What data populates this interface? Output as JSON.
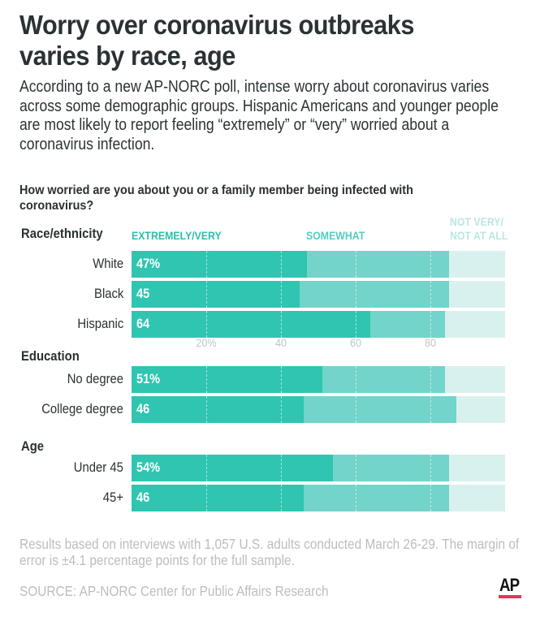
{
  "title": "Worry over coronavirus outbreaks varies by race, age",
  "subtitle": "According to a new AP-NORC poll, intense worry about coronavirus varies across some demographic groups. Hispanic Americans and younger people are most likely to report feeling “extremely” or “very” worried about a coronavirus infection.",
  "question": "How worried are you about you or a family member being infected with coronavirus?",
  "footnote": "Results based on interviews with 1,057 U.S. adults conducted March 26-29. The margin of error is ±4.1 percentage points for the full sample.",
  "source": "SOURCE: AP-NORC Center for Public Affairs Research",
  "logo": "AP",
  "colors": {
    "extremely_very": "#2fc5b1",
    "somewhat": "#72d4ca",
    "not_very": "#d9f1ee",
    "legend_extremely": "#2ebfab",
    "legend_somewhat": "#55cdbf",
    "legend_not_very": "#b9e7e1",
    "brand_red": "#e8335a"
  },
  "chart_data": {
    "type": "bar",
    "orientation": "horizontal",
    "stacked": true,
    "title": "How worried are you about you or a family member being infected with coronavirus?",
    "xlim": [
      0,
      100
    ],
    "x_ticks": [
      "20%",
      "40",
      "60",
      "80"
    ],
    "x_tick_values": [
      20,
      40,
      60,
      80
    ],
    "grid": true,
    "legend": [
      {
        "name": "EXTREMELY/VERY",
        "lines": [
          "EXTREMELY/VERY"
        ]
      },
      {
        "name": "SOMEWHAT",
        "lines": [
          "SOMEWHAT"
        ]
      },
      {
        "name": "NOT VERY/ NOT AT ALL",
        "lines": [
          "NOT VERY/",
          "NOT AT ALL"
        ]
      }
    ],
    "legend_position": "top",
    "groups": [
      {
        "label": "Race/ethnicity",
        "rows": [
          {
            "label": "White",
            "value_label": "47%",
            "values": [
              47,
              38,
              15
            ]
          },
          {
            "label": "Black",
            "value_label": "45",
            "values": [
              45,
              40,
              15
            ]
          },
          {
            "label": "Hispanic",
            "value_label": "64",
            "values": [
              64,
              20,
              16
            ]
          }
        ]
      },
      {
        "label": "Education",
        "rows": [
          {
            "label": "No degree",
            "value_label": "51%",
            "values": [
              51,
              33,
              16
            ]
          },
          {
            "label": "College degree",
            "value_label": "46",
            "values": [
              46,
              41,
              13
            ]
          }
        ]
      },
      {
        "label": "Age",
        "rows": [
          {
            "label": "Under 45",
            "value_label": "54%",
            "values": [
              54,
              31,
              15
            ]
          },
          {
            "label": "45+",
            "value_label": "46",
            "values": [
              46,
              39,
              15
            ]
          }
        ]
      }
    ]
  }
}
